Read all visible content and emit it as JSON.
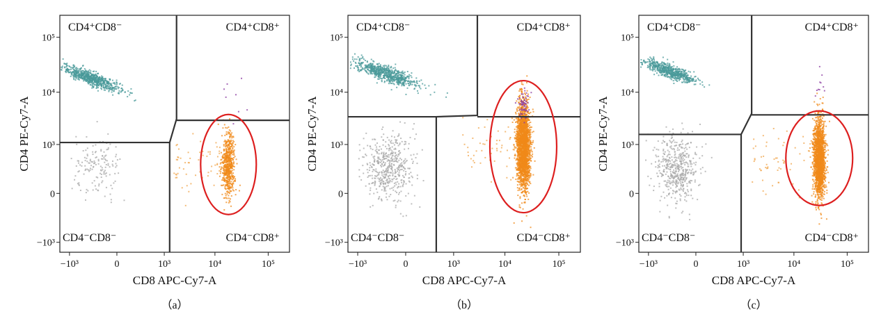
{
  "chart_data": [
    {
      "type": "scatter",
      "caption": "（a）",
      "xlabel": "CD8 APC-Cy7-A",
      "ylabel": "CD4 PE-Cy7-A",
      "xticks": [
        "−10³",
        "0",
        "10³",
        "10⁴",
        "10⁵"
      ],
      "yticks": [
        "−10³",
        "0",
        "10³",
        "10⁴",
        "10⁵"
      ],
      "quadrants": {
        "top_left": "CD4⁺CD8⁻",
        "top_right": "CD4⁺CD8⁺",
        "bottom_left": "CD4⁻CD8⁻",
        "bottom_right": "CD4⁻CD8⁺"
      },
      "gate_lines": {
        "x_split_low": 1300,
        "x_split_high": 1800,
        "y_split_low": 1100,
        "y_split_high": 3000
      },
      "highlight": "ellipse around CD4⁻CD8⁺ population",
      "series": [
        {
          "name": "CD4⁺CD8⁻",
          "color": "#4a9a9a",
          "center": [
            -300,
            18000
          ],
          "count": 700
        },
        {
          "name": "CD4⁻CD8⁻",
          "color": "#a8a8a8",
          "center": [
            -200,
            250
          ],
          "count": 150
        },
        {
          "name": "CD4⁻CD8⁺",
          "color": "#f08a1a",
          "center": [
            18000,
            350
          ],
          "count": 600
        },
        {
          "name": "CD4⁺CD8⁺",
          "color": "#8a3aa0",
          "center": [
            25000,
            12000
          ],
          "count": 8
        }
      ],
      "colors": {
        "ellipse": "#dd1f1f",
        "gate": "#333333"
      }
    },
    {
      "type": "scatter",
      "caption": "（b）",
      "xlabel": "CD8 APC-Cy7-A",
      "ylabel": "CD4 PE-Cy7-A",
      "xticks": [
        "−10³",
        "0",
        "10³",
        "10⁴",
        "10⁵"
      ],
      "yticks": [
        "−10³",
        "0",
        "10³",
        "10⁴",
        "10⁵"
      ],
      "quadrants": {
        "top_left": "CD4⁺CD8⁻",
        "top_right": "CD4⁺CD8⁺",
        "bottom_left": "CD4⁻CD8⁻",
        "bottom_right": "CD4⁻CD8⁺"
      },
      "gate_lines": {
        "x_split_low": 400,
        "x_split_high": 3000,
        "y_split_low": 3500,
        "y_split_high": 3500
      },
      "highlight": "ellipse around CD4⁻CD8⁺ population",
      "series": [
        {
          "name": "CD4⁺CD8⁻",
          "color": "#4a9a9a",
          "center": [
            -200,
            22000
          ],
          "count": 700
        },
        {
          "name": "CD4⁻CD8⁻",
          "color": "#a8a8a8",
          "center": [
            -150,
            300
          ],
          "count": 500
        },
        {
          "name": "CD4⁻CD8⁺",
          "color": "#f08a1a",
          "center": [
            22000,
            900
          ],
          "count": 2500
        },
        {
          "name": "CD4⁺CD8⁺",
          "color": "#8a3aa0",
          "center": [
            22000,
            6000
          ],
          "count": 60
        }
      ],
      "colors": {
        "ellipse": "#dd1f1f",
        "gate": "#333333"
      }
    },
    {
      "type": "scatter",
      "caption": "（c）",
      "xlabel": "CD8 APC-Cy7-A",
      "ylabel": "CD4 PE-Cy7-A",
      "xticks": [
        "−10³",
        "0",
        "10³",
        "10⁴",
        "10⁵"
      ],
      "yticks": [
        "−10³",
        "0",
        "10³",
        "10⁴",
        "10⁵"
      ],
      "quadrants": {
        "top_left": "CD4⁺CD8⁻",
        "top_right": "CD4⁺CD8⁺",
        "bottom_left": "CD4⁻CD8⁻",
        "bottom_right": "CD4⁻CD8⁺"
      },
      "gate_lines": {
        "x_split_low": 900,
        "x_split_high": 1500,
        "y_split_low": 1600,
        "y_split_high": 3800
      },
      "highlight": "ellipse around CD4⁻CD8⁺ population",
      "series": [
        {
          "name": "CD4⁺CD8⁻",
          "color": "#4a9a9a",
          "center": [
            -300,
            24000
          ],
          "count": 600
        },
        {
          "name": "CD4⁻CD8⁻",
          "color": "#a8a8a8",
          "center": [
            -200,
            250
          ],
          "count": 500
        },
        {
          "name": "CD4⁻CD8⁺",
          "color": "#f08a1a",
          "center": [
            30000,
            500
          ],
          "count": 1800
        },
        {
          "name": "CD4⁺CD8⁺",
          "color": "#8a3aa0",
          "center": [
            30000,
            14000
          ],
          "count": 10
        }
      ],
      "colors": {
        "ellipse": "#dd1f1f",
        "gate": "#333333"
      }
    }
  ]
}
